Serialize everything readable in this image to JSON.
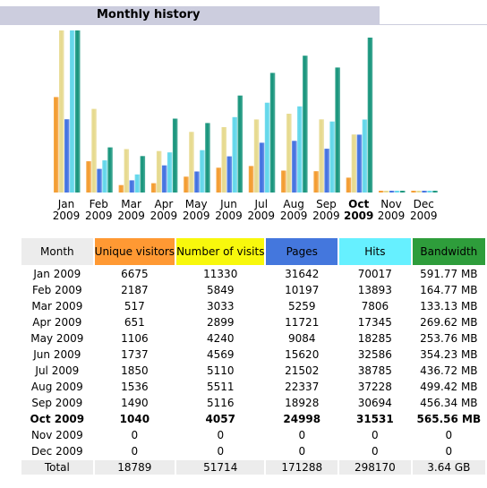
{
  "title": "Monthly history",
  "colors": {
    "unique_visitors": "#f39a2c",
    "number_of_visits": "#e6d98c",
    "pages": "#3f6fe0",
    "hits": "#5fd6ea",
    "bandwidth": "#14937a"
  },
  "table": {
    "headers": {
      "month": "Month",
      "unique_visitors": "Unique visitors",
      "number_of_visits": "Number of visits",
      "pages": "Pages",
      "hits": "Hits",
      "bandwidth": "Bandwidth"
    },
    "rows": [
      {
        "month": "Jan 2009",
        "uv": "6675",
        "nv": "11330",
        "pg": "31642",
        "ht": "70017",
        "bw": "591.77 MB"
      },
      {
        "month": "Feb 2009",
        "uv": "2187",
        "nv": "5849",
        "pg": "10197",
        "ht": "13893",
        "bw": "164.77 MB"
      },
      {
        "month": "Mar 2009",
        "uv": "517",
        "nv": "3033",
        "pg": "5259",
        "ht": "7806",
        "bw": "133.13 MB"
      },
      {
        "month": "Apr 2009",
        "uv": "651",
        "nv": "2899",
        "pg": "11721",
        "ht": "17345",
        "bw": "269.62 MB"
      },
      {
        "month": "May 2009",
        "uv": "1106",
        "nv": "4240",
        "pg": "9084",
        "ht": "18285",
        "bw": "253.76 MB"
      },
      {
        "month": "Jun 2009",
        "uv": "1737",
        "nv": "4569",
        "pg": "15620",
        "ht": "32586",
        "bw": "354.23 MB"
      },
      {
        "month": "Jul 2009",
        "uv": "1850",
        "nv": "5110",
        "pg": "21502",
        "ht": "38785",
        "bw": "436.72 MB"
      },
      {
        "month": "Aug 2009",
        "uv": "1536",
        "nv": "5511",
        "pg": "22337",
        "ht": "37228",
        "bw": "499.42 MB"
      },
      {
        "month": "Sep 2009",
        "uv": "1490",
        "nv": "5116",
        "pg": "18928",
        "ht": "30694",
        "bw": "456.34 MB"
      },
      {
        "month": "Oct 2009",
        "uv": "1040",
        "nv": "4057",
        "pg": "24998",
        "ht": "31531",
        "bw": "565.56 MB"
      },
      {
        "month": "Nov 2009",
        "uv": "0",
        "nv": "0",
        "pg": "0",
        "ht": "0",
        "bw": "0"
      },
      {
        "month": "Dec 2009",
        "uv": "0",
        "nv": "0",
        "pg": "0",
        "ht": "0",
        "bw": "0"
      }
    ],
    "current_month_index": 9,
    "total": {
      "month": "Total",
      "uv": "18789",
      "nv": "51714",
      "pg": "171288",
      "ht": "298170",
      "bw": "3.64 GB"
    }
  },
  "chart_data": {
    "type": "bar",
    "title": "Monthly history",
    "categories": [
      {
        "month": "Jan",
        "year": "2009"
      },
      {
        "month": "Feb",
        "year": "2009"
      },
      {
        "month": "Mar",
        "year": "2009"
      },
      {
        "month": "Apr",
        "year": "2009"
      },
      {
        "month": "May",
        "year": "2009"
      },
      {
        "month": "Jun",
        "year": "2009"
      },
      {
        "month": "Jul",
        "year": "2009"
      },
      {
        "month": "Aug",
        "year": "2009"
      },
      {
        "month": "Sep",
        "year": "2009"
      },
      {
        "month": "Oct",
        "year": "2009"
      },
      {
        "month": "Nov",
        "year": "2009"
      },
      {
        "month": "Dec",
        "year": "2009"
      }
    ],
    "current_category_index": 9,
    "scale_note": "visitors and visits share one scale; pages and hits share one scale; bandwidth has its own scale",
    "series": [
      {
        "key": "unique_visitors",
        "values": [
          6675,
          2187,
          517,
          651,
          1106,
          1737,
          1850,
          1536,
          1490,
          1040,
          0,
          0
        ],
        "group": "visits"
      },
      {
        "key": "number_of_visits",
        "values": [
          11330,
          5849,
          3033,
          2899,
          4240,
          4569,
          5110,
          5511,
          5116,
          4057,
          0,
          0
        ],
        "group": "visits"
      },
      {
        "key": "pages",
        "values": [
          31642,
          10197,
          5259,
          11721,
          9084,
          15620,
          21502,
          22337,
          18928,
          24998,
          0,
          0
        ],
        "group": "hits"
      },
      {
        "key": "hits",
        "values": [
          70017,
          13893,
          7806,
          17345,
          18285,
          32586,
          38785,
          37228,
          30694,
          31531,
          0,
          0
        ],
        "group": "hits"
      },
      {
        "key": "bandwidth",
        "values": [
          591.77,
          164.77,
          133.13,
          269.62,
          253.76,
          354.23,
          436.72,
          499.42,
          456.34,
          565.56,
          0,
          0
        ],
        "unit": "MB",
        "group": "bandwidth"
      }
    ]
  }
}
